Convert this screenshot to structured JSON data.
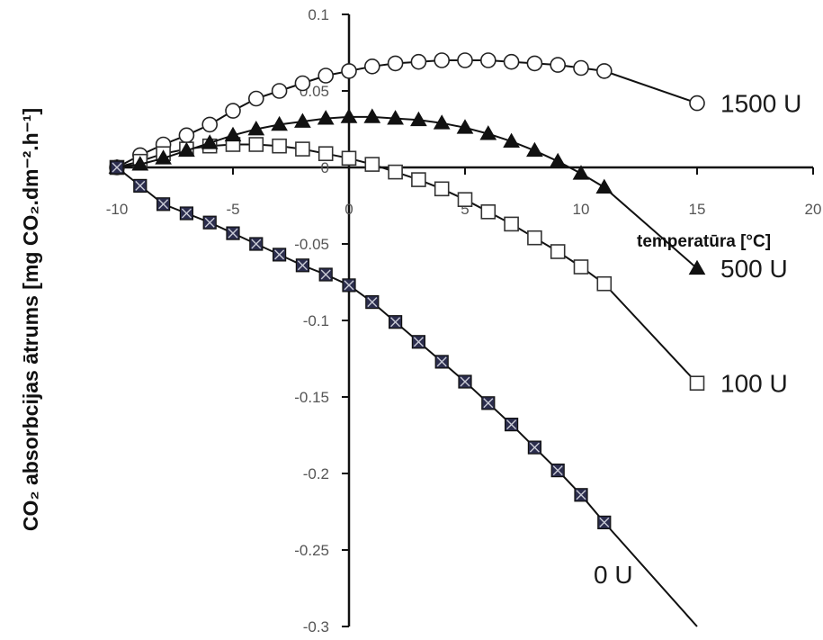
{
  "chart_data": {
    "type": "line",
    "title": "",
    "xlabel": "temperatūra [°C]",
    "ylabel": "CO₂ absorbcijas ātrums [mg CO₂.dm⁻².h⁻¹]",
    "xlim": [
      -10,
      20
    ],
    "ylim": [
      -0.3,
      0.1
    ],
    "x_ticks": [
      "-10",
      "-5",
      "0",
      "5",
      "10",
      "15",
      "20"
    ],
    "y_ticks": [
      "0.1",
      "0.05",
      "0",
      "-0.05",
      "-0.1",
      "-0.15",
      "-0.2",
      "-0.25",
      "-0.3"
    ],
    "grid": false,
    "series": [
      {
        "name": "1500 U",
        "marker": "open-circle",
        "x": [
          -10,
          -9,
          -8,
          -7,
          -6,
          -5,
          -4,
          -3,
          -2,
          -1,
          0,
          1,
          2,
          3,
          4,
          5,
          6,
          7,
          8,
          9,
          10,
          11,
          15
        ],
        "y": [
          0.0,
          0.008,
          0.015,
          0.021,
          0.028,
          0.037,
          0.045,
          0.05,
          0.055,
          0.06,
          0.063,
          0.066,
          0.068,
          0.069,
          0.07,
          0.07,
          0.07,
          0.069,
          0.068,
          0.067,
          0.065,
          0.063,
          0.042
        ]
      },
      {
        "name": "500 U",
        "marker": "filled-triangle",
        "x": [
          -10,
          -9,
          -8,
          -7,
          -6,
          -5,
          -4,
          -3,
          -2,
          -1,
          0,
          1,
          2,
          3,
          4,
          5,
          6,
          7,
          8,
          9,
          10,
          11,
          15
        ],
        "y": [
          0.0,
          0.002,
          0.006,
          0.011,
          0.016,
          0.021,
          0.025,
          0.028,
          0.03,
          0.032,
          0.033,
          0.033,
          0.032,
          0.031,
          0.029,
          0.026,
          0.022,
          0.017,
          0.011,
          0.004,
          -0.004,
          -0.013,
          -0.066
        ]
      },
      {
        "name": "100 U",
        "marker": "open-square",
        "x": [
          -10,
          -9,
          -8,
          -7,
          -6,
          -5,
          -4,
          -3,
          -2,
          -1,
          0,
          1,
          2,
          3,
          4,
          5,
          6,
          7,
          8,
          9,
          10,
          11,
          15
        ],
        "y": [
          0.0,
          0.004,
          0.009,
          0.012,
          0.014,
          0.015,
          0.015,
          0.014,
          0.012,
          0.009,
          0.006,
          0.002,
          -0.003,
          -0.008,
          -0.014,
          -0.021,
          -0.029,
          -0.037,
          -0.046,
          -0.055,
          -0.065,
          -0.076,
          -0.141
        ]
      },
      {
        "name": "0 U",
        "marker": "x-filled-square",
        "x": [
          -10,
          -9,
          -8,
          -7,
          -6,
          -5,
          -4,
          -3,
          -2,
          -1,
          0,
          1,
          2,
          3,
          4,
          5,
          6,
          7,
          8,
          9,
          10,
          11,
          15
        ],
        "y": [
          0.0,
          -0.012,
          -0.024,
          -0.03,
          -0.036,
          -0.043,
          -0.05,
          -0.057,
          -0.064,
          -0.07,
          -0.077,
          -0.088,
          -0.101,
          -0.114,
          -0.127,
          -0.14,
          -0.154,
          -0.168,
          -0.183,
          -0.198,
          -0.214,
          -0.232,
          -0.3
        ]
      }
    ]
  }
}
